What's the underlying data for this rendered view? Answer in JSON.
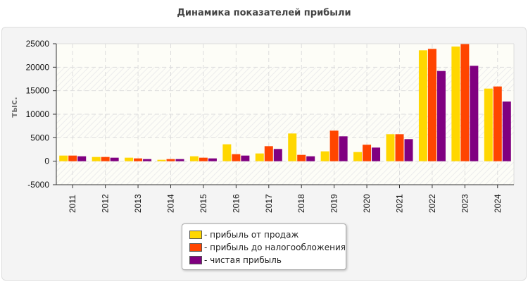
{
  "chart_data": {
    "type": "bar",
    "title": "Динамика показателей прибыли",
    "ylabel": "тыс.",
    "xlabel": "",
    "ylim": [
      -5000,
      25000
    ],
    "yticks": [
      -5000,
      0,
      5000,
      10000,
      15000,
      20000,
      25000
    ],
    "grid": true,
    "legend_position": "bottom",
    "categories": [
      "2011",
      "2012",
      "2013",
      "2014",
      "2015",
      "2016",
      "2017",
      "2018",
      "2019",
      "2020",
      "2021",
      "2022",
      "2023",
      "2024"
    ],
    "series": [
      {
        "name": "- прибыль от продаж",
        "color": "#ffd700",
        "values": [
          1200,
          900,
          750,
          300,
          1050,
          3600,
          1650,
          5900,
          2100,
          1950,
          5750,
          23600,
          24400,
          15450
        ]
      },
      {
        "name": "- прибыль до налогообложения",
        "color": "#ff4500",
        "values": [
          1200,
          900,
          600,
          450,
          750,
          1500,
          3200,
          1350,
          6500,
          3500,
          5750,
          23900,
          25300,
          15900
        ]
      },
      {
        "name": "- чистая прибыль",
        "color": "#800080",
        "values": [
          1050,
          750,
          450,
          450,
          600,
          1200,
          2600,
          1050,
          5300,
          2900,
          4700,
          19200,
          20300,
          12700
        ]
      }
    ]
  }
}
